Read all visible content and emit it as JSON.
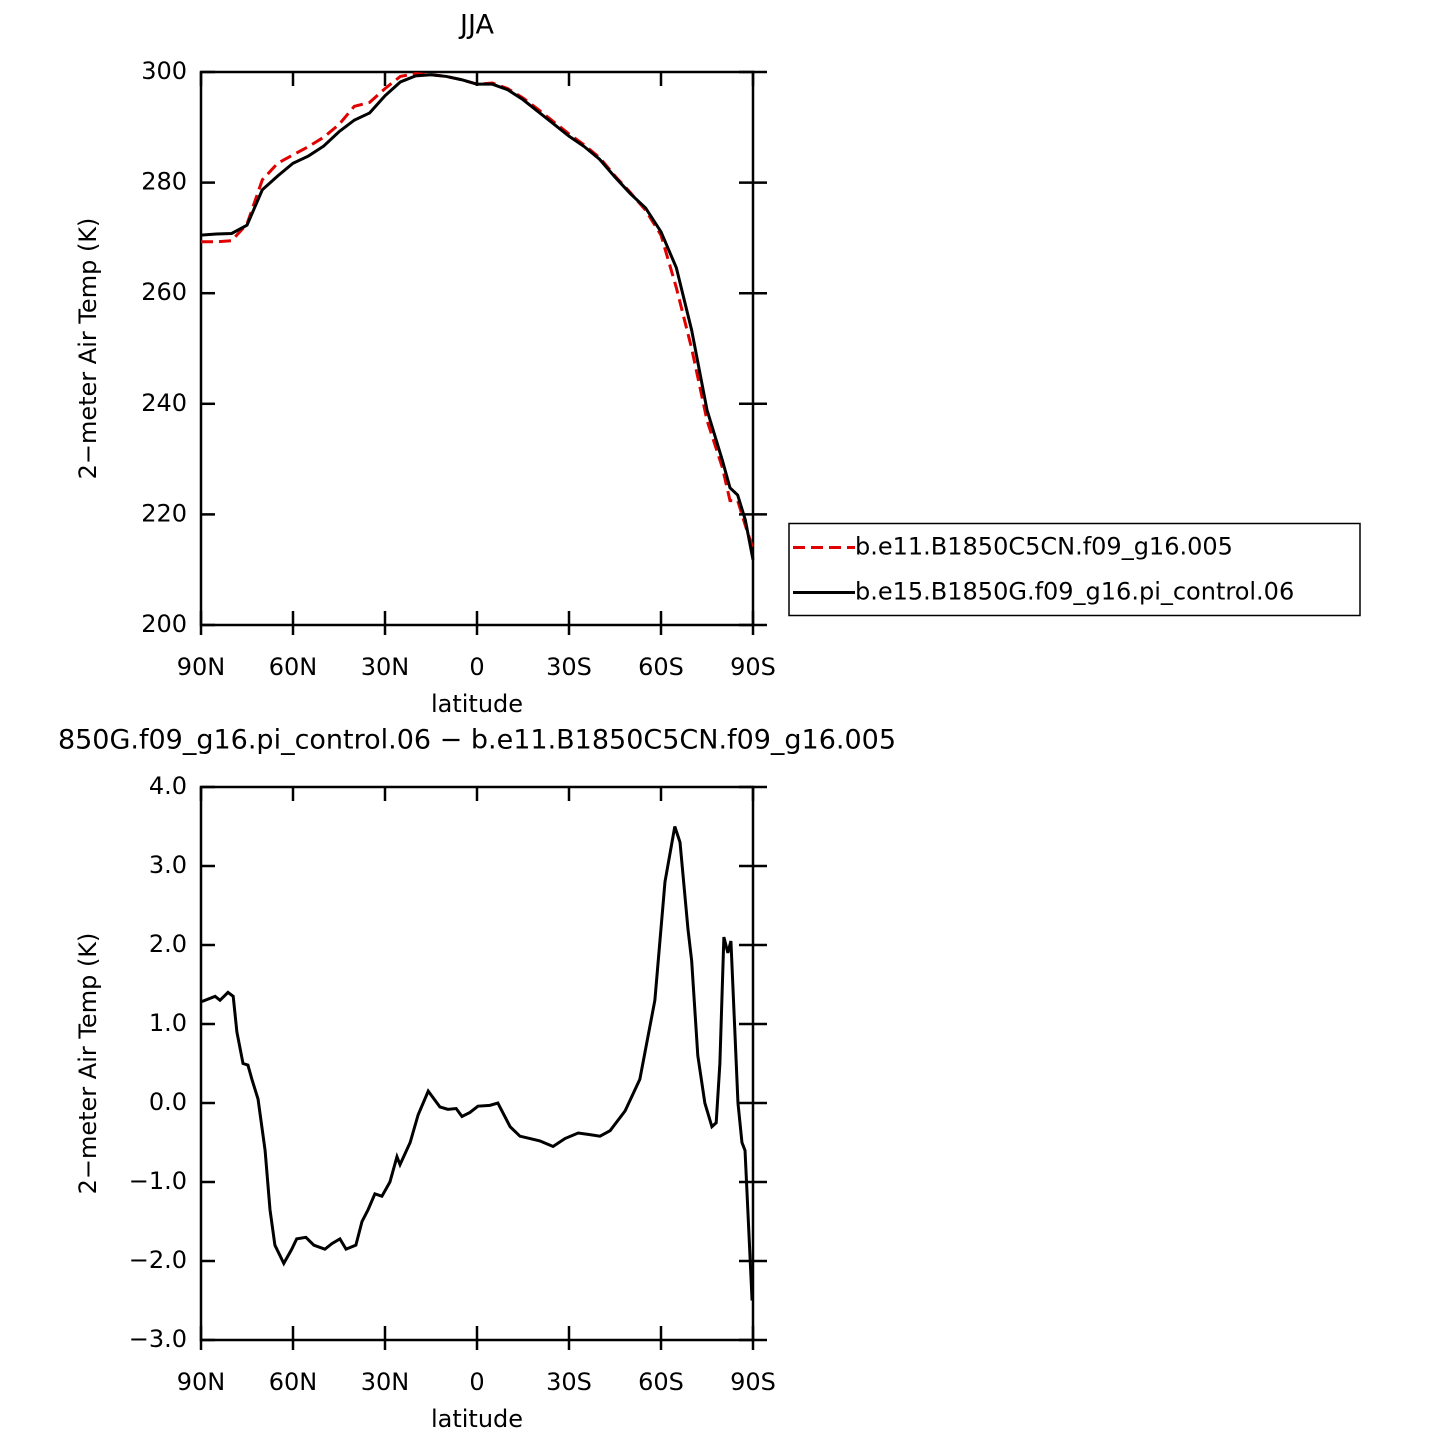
{
  "chart_data": [
    {
      "type": "line",
      "title": "JJA",
      "x_label": "latitude",
      "y_label": "2−meter Air Temp (K)",
      "xlim": [
        90,
        -90
      ],
      "xticks": [
        {
          "value": 90,
          "label": "90N"
        },
        {
          "value": 60,
          "label": "60N"
        },
        {
          "value": 30,
          "label": "30N"
        },
        0,
        {
          "value": -30,
          "label": "30S"
        },
        {
          "value": -60,
          "label": "60S"
        },
        {
          "value": -90,
          "label": "90S"
        }
      ],
      "ylim": [
        200,
        300
      ],
      "yticks": [
        200,
        220,
        240,
        260,
        280,
        300
      ],
      "legend": "right",
      "x": [
        90,
        85,
        80,
        75,
        70,
        65,
        60,
        55,
        50,
        45,
        40,
        35,
        30,
        25,
        20,
        15,
        10,
        5,
        0,
        -5,
        -10,
        -15,
        -20,
        -25,
        -30,
        -35,
        -40,
        -45,
        -50,
        -55,
        -60,
        -65,
        -70,
        -75,
        -80,
        -82.5,
        -85,
        -87.5,
        -90
      ],
      "series": [
        {
          "name": "b.e11.B1850C5CN.f09_g16.005",
          "color": "#e00000",
          "style": "dashed",
          "values": [
            269.3,
            269.3,
            269.5,
            272.5,
            280.5,
            283.5,
            285,
            286.5,
            288.2,
            290.5,
            293.8,
            294.5,
            297,
            299.2,
            299.7,
            299.5,
            299.2,
            298.6,
            297.8,
            298.0,
            297.0,
            295.3,
            293.2,
            291.0,
            288.8,
            286.8,
            284.5,
            281.2,
            278.2,
            275.0,
            270.5,
            261,
            250,
            237,
            228.5,
            222.5,
            222.5,
            218,
            213.8
          ]
        },
        {
          "name": "b.e15.B1850G.f09_g16.pi_control.06",
          "color": "#000000",
          "style": "solid",
          "values": [
            270.5,
            270.7,
            270.8,
            272.3,
            278.7,
            281.2,
            283.5,
            284.8,
            286.6,
            289.2,
            291.3,
            292.6,
            295.7,
            298.2,
            299.3,
            299.5,
            299.2,
            298.6,
            297.8,
            297.8,
            296.8,
            295.0,
            292.8,
            290.6,
            288.4,
            286.5,
            284.2,
            281.0,
            278.0,
            275.4,
            271.1,
            264.6,
            253.3,
            238.9,
            229.8,
            224.8,
            223.5,
            219,
            211.8
          ]
        }
      ]
    },
    {
      "type": "line",
      "title": "850G.f09_g16.pi_control.06 − b.e11.B1850C5CN.f09_g16.005",
      "x_label": "latitude",
      "y_label": "2−meter Air Temp (K)",
      "xlim": [
        90,
        -90
      ],
      "xticks": [
        {
          "value": 90,
          "label": "90N"
        },
        {
          "value": 60,
          "label": "60N"
        },
        {
          "value": 30,
          "label": "30N"
        },
        0,
        {
          "value": -30,
          "label": "30S"
        },
        {
          "value": -60,
          "label": "60S"
        },
        {
          "value": -90,
          "label": "90S"
        }
      ],
      "ylim": [
        -3,
        4
      ],
      "yticks": [
        {
          "value": -3,
          "label": "−3.0"
        },
        {
          "value": -2,
          "label": "−2.0"
        },
        {
          "value": -1,
          "label": "−1.0"
        },
        {
          "value": 0,
          "label": "0.0"
        },
        {
          "value": 1,
          "label": "1.0"
        },
        {
          "value": 2,
          "label": "2.0"
        },
        {
          "value": 3,
          "label": "3.0"
        },
        {
          "value": 4,
          "label": "4.0"
        }
      ],
      "x": [
        90,
        85.4,
        83.8,
        81.2,
        79.5,
        78.3,
        76.3,
        74.7,
        73.4,
        71.4,
        69.1,
        67.5,
        65.9,
        63,
        60.4,
        58.8,
        55.8,
        53.2,
        49.6,
        47.3,
        44.7,
        42.7,
        39.5,
        37.5,
        35.5,
        33.3,
        31,
        28.4,
        26.1,
        25.1,
        21.8,
        19.2,
        15.9,
        12.1,
        9.5,
        6.8,
        4.9,
        2.3,
        -0.3,
        -4.2,
        -6.8,
        -10.8,
        -14,
        -17.3,
        -20.5,
        -24.8,
        -28.7,
        -33,
        -36.8,
        -40.1,
        -43.4,
        -48.3,
        -53.1,
        -58,
        -61.3,
        -64.5,
        -66.2,
        -68.8,
        -70,
        -72,
        -74.3,
        -76.6,
        -78,
        -79.2,
        -80.5,
        -81.8,
        -82.8,
        -85.1,
        -86.4,
        -87.4,
        -89.7
      ],
      "series": [
        {
          "color": "#000000",
          "style": "solid",
          "values": [
            1.28,
            1.35,
            1.3,
            1.4,
            1.35,
            0.9,
            0.5,
            0.48,
            0.3,
            0.05,
            -0.6,
            -1.35,
            -1.8,
            -2.03,
            -1.85,
            -1.72,
            -1.7,
            -1.8,
            -1.85,
            -1.78,
            -1.72,
            -1.85,
            -1.8,
            -1.5,
            -1.35,
            -1.15,
            -1.18,
            -1.0,
            -0.68,
            -0.78,
            -0.5,
            -0.15,
            0.15,
            -0.05,
            -0.08,
            -0.07,
            -0.17,
            -0.12,
            -0.04,
            -0.03,
            0.0,
            -0.3,
            -0.42,
            -0.45,
            -0.48,
            -0.55,
            -0.45,
            -0.38,
            -0.4,
            -0.42,
            -0.35,
            -0.1,
            0.3,
            1.3,
            2.8,
            3.5,
            3.3,
            2.2,
            1.8,
            0.6,
            0.0,
            -0.3,
            -0.25,
            0.5,
            2.1,
            1.9,
            2.05,
            0.0,
            -0.5,
            -0.6,
            -2.5
          ]
        }
      ]
    }
  ]
}
